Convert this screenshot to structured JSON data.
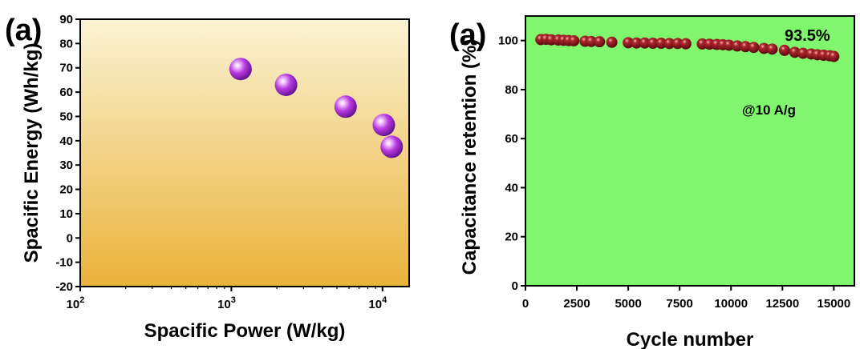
{
  "chart_data": [
    {
      "type": "scatter",
      "panel_label": "(a)",
      "xlabel": "Spacific Power (W/kg)",
      "ylabel": "Spacific Energy (Wh/kg)",
      "x_scale": "log",
      "xlim": [
        100,
        15000
      ],
      "ylim": [
        -20,
        90
      ],
      "x_ticks": [
        {
          "value": 100,
          "base": "10",
          "exp": "2"
        },
        {
          "value": 1000,
          "base": "10",
          "exp": "3"
        },
        {
          "value": 10000,
          "base": "10",
          "exp": "4"
        }
      ],
      "y_ticks": [
        -20,
        -10,
        0,
        10,
        20,
        30,
        40,
        50,
        60,
        70,
        80,
        90
      ],
      "points": [
        {
          "x": 1150,
          "y": 69.5
        },
        {
          "x": 2300,
          "y": 63
        },
        {
          "x": 5700,
          "y": 54
        },
        {
          "x": 10200,
          "y": 46.5
        },
        {
          "x": 11500,
          "y": 37.5
        }
      ],
      "background": {
        "top": "#faf3d4",
        "bottom": "#eab23a"
      },
      "marker_color": "#b93be0"
    },
    {
      "type": "scatter",
      "panel_label": "(a)",
      "xlabel": "Cycle number",
      "ylabel": "Capacitance retention (%)",
      "xlim": [
        0,
        16000
      ],
      "ylim": [
        0,
        110
      ],
      "x_ticks": [
        0,
        2500,
        5000,
        7500,
        10000,
        12500,
        15000
      ],
      "y_ticks": [
        0,
        20,
        40,
        60,
        80,
        100
      ],
      "annotations": [
        "93.5%",
        "@10 A/g"
      ],
      "points": [
        {
          "x": 750,
          "y": 100.4
        },
        {
          "x": 1000,
          "y": 100.5
        },
        {
          "x": 1250,
          "y": 100.3
        },
        {
          "x": 1600,
          "y": 100.2
        },
        {
          "x": 1850,
          "y": 100.1
        },
        {
          "x": 2100,
          "y": 100.0
        },
        {
          "x": 2350,
          "y": 99.9
        },
        {
          "x": 2900,
          "y": 99.7
        },
        {
          "x": 3200,
          "y": 99.6
        },
        {
          "x": 3600,
          "y": 99.5
        },
        {
          "x": 4200,
          "y": 99.3
        },
        {
          "x": 5000,
          "y": 99.1
        },
        {
          "x": 5400,
          "y": 99.0
        },
        {
          "x": 5800,
          "y": 99.0
        },
        {
          "x": 6200,
          "y": 98.9
        },
        {
          "x": 6600,
          "y": 98.9
        },
        {
          "x": 7000,
          "y": 98.8
        },
        {
          "x": 7400,
          "y": 98.8
        },
        {
          "x": 7800,
          "y": 98.7
        },
        {
          "x": 8600,
          "y": 98.6
        },
        {
          "x": 8950,
          "y": 98.5
        },
        {
          "x": 9300,
          "y": 98.4
        },
        {
          "x": 9600,
          "y": 98.3
        },
        {
          "x": 9900,
          "y": 98.1
        },
        {
          "x": 10300,
          "y": 97.8
        },
        {
          "x": 10700,
          "y": 97.5
        },
        {
          "x": 11100,
          "y": 97.2
        },
        {
          "x": 11600,
          "y": 96.8
        },
        {
          "x": 12000,
          "y": 96.5
        },
        {
          "x": 12600,
          "y": 96.0
        },
        {
          "x": 13100,
          "y": 95.2
        },
        {
          "x": 13500,
          "y": 94.8
        },
        {
          "x": 13900,
          "y": 94.5
        },
        {
          "x": 14200,
          "y": 94.2
        },
        {
          "x": 14500,
          "y": 94.0
        },
        {
          "x": 14800,
          "y": 93.8
        },
        {
          "x": 15000,
          "y": 93.5
        }
      ],
      "background": "#7ff66d",
      "marker_color": "#7a0d12"
    }
  ]
}
